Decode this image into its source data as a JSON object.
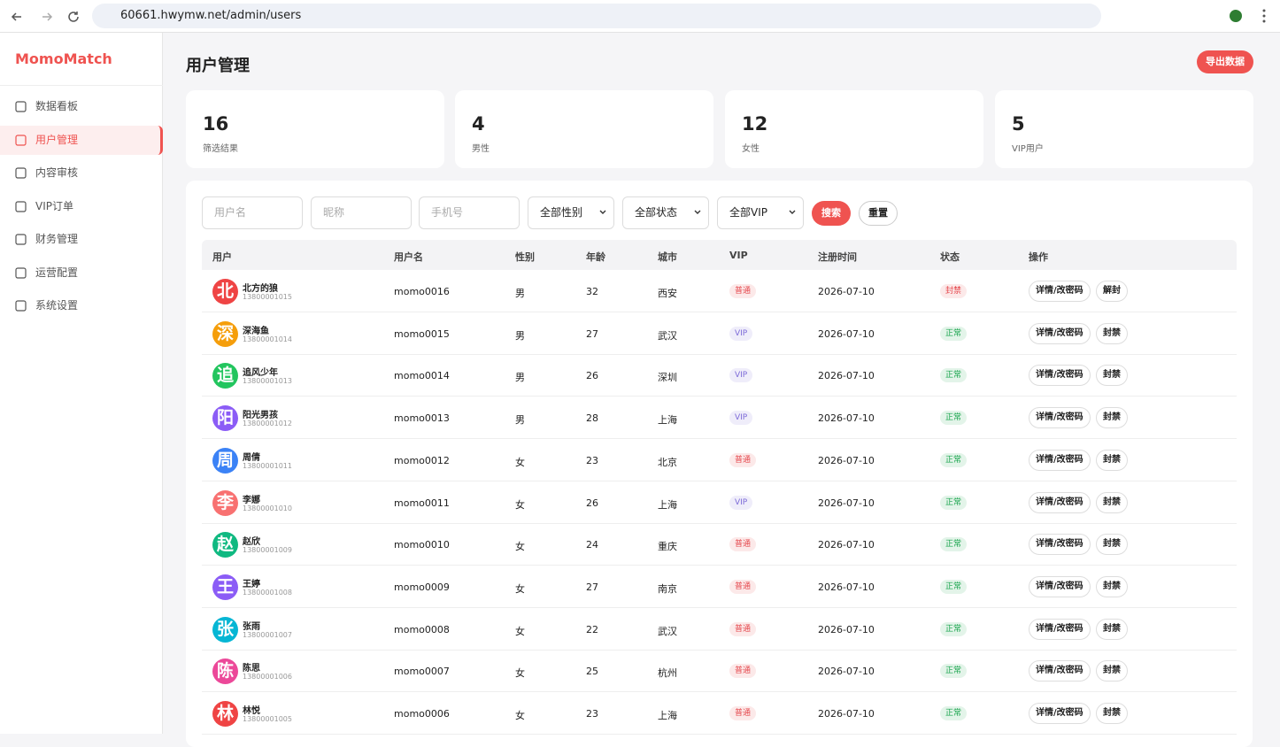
{
  "browser": {
    "url": "60661.hwymw.net/admin/users"
  },
  "sidebar": {
    "brand": "MomoMatch",
    "nav": [
      "数据看板",
      "用户管理",
      "内容审核",
      "VIP订单",
      "财务管理",
      "运营配置",
      "系统设置"
    ],
    "active": 1
  },
  "header": {
    "title": "用户管理",
    "export_button": "导出数据"
  },
  "stats": [
    {
      "value": 16,
      "label": "筛选结果"
    },
    {
      "value": 4,
      "label": "男性"
    },
    {
      "value": 12,
      "label": "女性"
    },
    {
      "value": 5,
      "label": "VIP用户"
    }
  ],
  "filters": {
    "inputs": [
      "用户名",
      "昵称",
      "手机号"
    ],
    "selects": [
      "全部性别",
      "全部状态",
      "全部VIP"
    ],
    "search": "搜索",
    "reset": "重置"
  },
  "table": {
    "columns": [
      "用户",
      "用户名",
      "性别",
      "年龄",
      "城市",
      "VIP",
      "注册时间",
      "状态",
      "操作"
    ],
    "rows": [
      {
        "avatar": "北",
        "name": "北方的狼",
        "phone": "13800001015",
        "username": "momo0016",
        "gender": "男",
        "age": 32,
        "city": "西安",
        "vip": "普通",
        "vip_color": "#e5484d",
        "registered": "2026-07-10",
        "status": "封禁",
        "status_color": "#e5484d",
        "actions": [
          "详情/改密码",
          "解封"
        ]
      },
      {
        "avatar": "深",
        "name": "深海鱼",
        "phone": "13800001014",
        "username": "momo0015",
        "gender": "男",
        "age": 27,
        "city": "武汉",
        "vip": "VIP",
        "vip_color": "#7c6ad8",
        "registered": "2026-07-10",
        "status": "正常",
        "status_color": "#16a34a",
        "actions": [
          "详情/改密码",
          "封禁"
        ]
      },
      {
        "avatar": "追",
        "name": "追风少年",
        "phone": "13800001013",
        "username": "momo0014",
        "gender": "男",
        "age": 26,
        "city": "深圳",
        "vip": "VIP",
        "vip_color": "#7c6ad8",
        "registered": "2026-07-10",
        "status": "正常",
        "status_color": "#16a34a",
        "actions": [
          "详情/改密码",
          "封禁"
        ]
      },
      {
        "avatar": "阳",
        "name": "阳光男孩",
        "phone": "13800001012",
        "username": "momo0013",
        "gender": "男",
        "age": 28,
        "city": "上海",
        "vip": "VIP",
        "vip_color": "#7c6ad8",
        "registered": "2026-07-10",
        "status": "正常",
        "status_color": "#16a34a",
        "actions": [
          "详情/改密码",
          "封禁"
        ]
      },
      {
        "avatar": "周",
        "name": "周倩",
        "phone": "13800001011",
        "username": "momo0012",
        "gender": "女",
        "age": 23,
        "city": "北京",
        "vip": "普通",
        "vip_color": "#e5484d",
        "registered": "2026-07-10",
        "status": "正常",
        "status_color": "#16a34a",
        "actions": [
          "详情/改密码",
          "封禁"
        ]
      },
      {
        "avatar": "李",
        "name": "李娜",
        "phone": "13800001010",
        "username": "momo0011",
        "gender": "女",
        "age": 26,
        "city": "上海",
        "vip": "VIP",
        "vip_color": "#7c6ad8",
        "registered": "2026-07-10",
        "status": "正常",
        "status_color": "#16a34a",
        "actions": [
          "详情/改密码",
          "封禁"
        ]
      },
      {
        "avatar": "赵",
        "name": "赵欣",
        "phone": "13800001009",
        "username": "momo0010",
        "gender": "女",
        "age": 24,
        "city": "重庆",
        "vip": "普通",
        "vip_color": "#e5484d",
        "registered": "2026-07-10",
        "status": "正常",
        "status_color": "#16a34a",
        "actions": [
          "详情/改密码",
          "封禁"
        ]
      },
      {
        "avatar": "王",
        "name": "王婷",
        "phone": "13800001008",
        "username": "momo0009",
        "gender": "女",
        "age": 27,
        "city": "南京",
        "vip": "普通",
        "vip_color": "#e5484d",
        "registered": "2026-07-10",
        "status": "正常",
        "status_color": "#16a34a",
        "actions": [
          "详情/改密码",
          "封禁"
        ]
      },
      {
        "avatar": "张",
        "name": "张雨",
        "phone": "13800001007",
        "username": "momo0008",
        "gender": "女",
        "age": 22,
        "city": "武汉",
        "vip": "普通",
        "vip_color": "#e5484d",
        "registered": "2026-07-10",
        "status": "正常",
        "status_color": "#16a34a",
        "actions": [
          "详情/改密码",
          "封禁"
        ]
      },
      {
        "avatar": "陈",
        "name": "陈思",
        "phone": "13800001006",
        "username": "momo0007",
        "gender": "女",
        "age": 25,
        "city": "杭州",
        "vip": "普通",
        "vip_color": "#e5484d",
        "registered": "2026-07-10",
        "status": "正常",
        "status_color": "#16a34a",
        "actions": [
          "详情/改密码",
          "封禁"
        ]
      },
      {
        "avatar": "林",
        "name": "林悦",
        "phone": "13800001005",
        "username": "momo0006",
        "gender": "女",
        "age": 23,
        "city": "上海",
        "vip": "普通",
        "vip_color": "#e5484d",
        "registered": "2026-07-10",
        "status": "正常",
        "status_color": "#16a34a",
        "actions": [
          "详情/改密码",
          "封禁"
        ]
      }
    ]
  }
}
